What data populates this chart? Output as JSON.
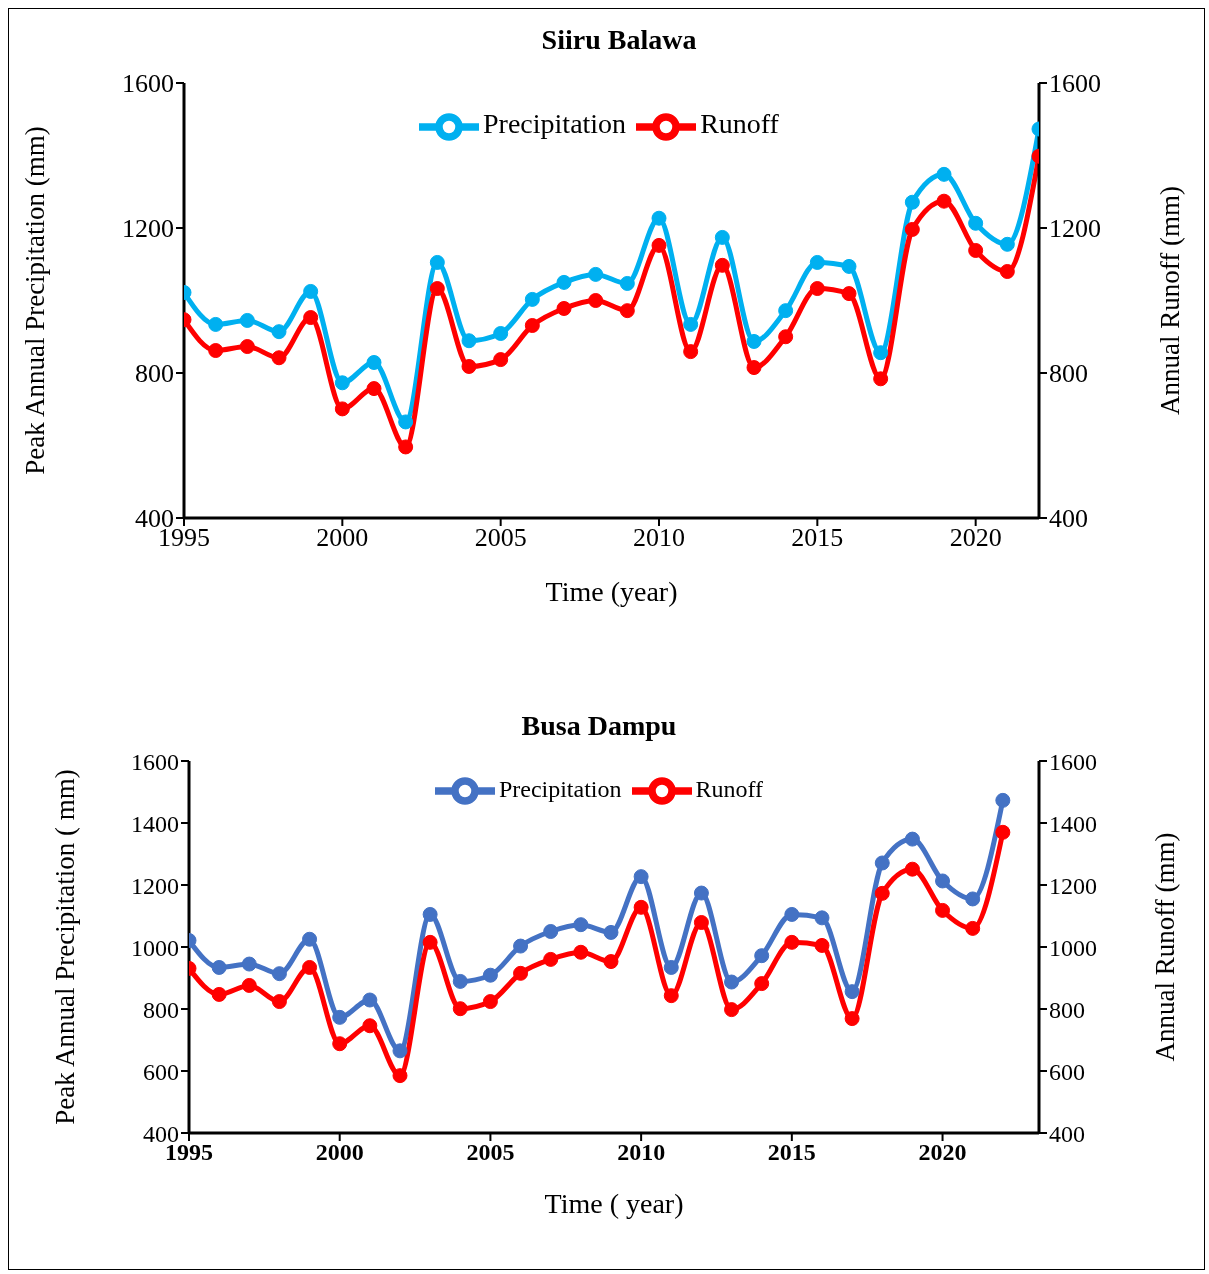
{
  "chart_data": [
    {
      "type": "line",
      "title": "Siiru Balawa",
      "xlabel": "Time (year)",
      "ylabel": "Peak Annual Precipitation (mm)",
      "y2label": "Annual Runoff (mm)",
      "x": [
        1995,
        1996,
        1997,
        1998,
        1999,
        2000,
        2001,
        2002,
        2003,
        2004,
        2005,
        2006,
        2007,
        2008,
        2009,
        2010,
        2011,
        2012,
        2013,
        2014,
        2015,
        2016,
        2017,
        2018,
        2019,
        2020,
        2021,
        2022
      ],
      "series": [
        {
          "name": "Precipitation",
          "color": "#00b0f0",
          "values": [
            1022,
            934,
            945,
            914,
            1025,
            773,
            829,
            665,
            1105,
            889,
            909,
            1003,
            1050,
            1072,
            1047,
            1227,
            934,
            1174,
            887,
            972,
            1105,
            1094,
            856,
            1271,
            1348,
            1213,
            1155,
            1473
          ]
        },
        {
          "name": "Runoff",
          "color": "#ff0000",
          "axis": "y2",
          "values": [
            947,
            862,
            873,
            842,
            953,
            701,
            757,
            596,
            1033,
            818,
            837,
            931,
            978,
            1000,
            972,
            1152,
            859,
            1097,
            815,
            900,
            1033,
            1019,
            784,
            1196,
            1274,
            1138,
            1080,
            1398
          ]
        }
      ],
      "xlim": [
        1995,
        2022
      ],
      "xticks": [
        1995,
        2000,
        2005,
        2010,
        2015,
        2020
      ],
      "ylim": [
        400,
        1600
      ],
      "yticks": [
        400,
        800,
        1200,
        1600
      ],
      "y2lim": [
        400,
        1600
      ],
      "y2ticks": [
        400,
        800,
        1200,
        1600
      ],
      "grid": false,
      "legend": "top",
      "marker": "circle",
      "line_style": "solid"
    },
    {
      "type": "line",
      "title": "Busa Dampu",
      "xlabel": "Time ( year)",
      "ylabel": "Peak Annual  Precipitation ( mm)",
      "y2label": "Annual Runoff (mm)",
      "x": [
        1995,
        1996,
        1997,
        1998,
        1999,
        2000,
        2001,
        2002,
        2003,
        2004,
        2005,
        2006,
        2007,
        2008,
        2009,
        2010,
        2011,
        2012,
        2013,
        2014,
        2015,
        2016,
        2017,
        2018,
        2019,
        2020,
        2021,
        2022
      ],
      "series": [
        {
          "name": "Precipitation",
          "color": "#4472c4",
          "values": [
            1021,
            934,
            945,
            914,
            1025,
            773,
            829,
            665,
            1105,
            889,
            909,
            1003,
            1050,
            1072,
            1047,
            1227,
            934,
            1174,
            887,
            972,
            1105,
            1094,
            856,
            1271,
            1348,
            1213,
            1155,
            1473
          ]
        },
        {
          "name": "Runoff",
          "color": "#ff0000",
          "axis": "y2",
          "values": [
            931,
            847,
            876,
            824,
            934,
            688,
            746,
            585,
            1015,
            801,
            824,
            915,
            960,
            983,
            953,
            1128,
            843,
            1079,
            798,
            882,
            1015,
            1005,
            769,
            1173,
            1251,
            1118,
            1060,
            1370
          ]
        }
      ],
      "xlim": [
        1995,
        2023.2
      ],
      "xticks": [
        1995,
        2000,
        2005,
        2010,
        2015,
        2020
      ],
      "ylim": [
        400,
        1600
      ],
      "yticks": [
        400,
        600,
        800,
        1000,
        1200,
        1400,
        1600
      ],
      "y2lim": [
        400,
        1600
      ],
      "y2ticks": [
        400,
        600,
        800,
        1000,
        1200,
        1400,
        1600
      ],
      "grid": false,
      "legend": "top",
      "marker": "circle",
      "line_style": "solid"
    }
  ]
}
